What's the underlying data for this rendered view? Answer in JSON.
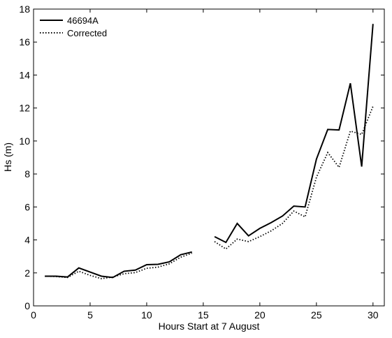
{
  "chart_data": {
    "type": "line",
    "xlabel": "Hours Start at 7 August",
    "ylabel": "Hs (m)",
    "xlim": [
      0,
      31
    ],
    "ylim": [
      0,
      18
    ],
    "x_ticks": [
      0,
      5,
      10,
      15,
      20,
      25,
      30
    ],
    "y_ticks": [
      0,
      2,
      4,
      6,
      8,
      10,
      12,
      14,
      16,
      18
    ],
    "grid": false,
    "legend_position": "top-left",
    "series": [
      {
        "name": "46694A",
        "style": "solid",
        "color": "#000000",
        "segments": [
          [
            [
              1,
              1.8
            ],
            [
              2,
              1.8
            ],
            [
              3,
              1.75
            ],
            [
              4,
              2.3
            ],
            [
              5,
              2.05
            ],
            [
              6,
              1.8
            ],
            [
              7,
              1.72
            ],
            [
              8,
              2.1
            ],
            [
              9,
              2.17
            ],
            [
              10,
              2.5
            ],
            [
              11,
              2.52
            ],
            [
              12,
              2.67
            ],
            [
              13,
              3.1
            ],
            [
              14,
              3.27
            ]
          ],
          [
            [
              16,
              4.2
            ],
            [
              17,
              3.85
            ],
            [
              18,
              5.0
            ],
            [
              19,
              4.25
            ],
            [
              20,
              4.7
            ],
            [
              21,
              5.05
            ],
            [
              22,
              5.45
            ],
            [
              23,
              6.05
            ],
            [
              24,
              6.0
            ],
            [
              25,
              8.9
            ],
            [
              26,
              10.7
            ],
            [
              27,
              10.67
            ],
            [
              28,
              13.5
            ],
            [
              29,
              8.45
            ],
            [
              30,
              17.1
            ]
          ]
        ]
      },
      {
        "name": "Corrected",
        "style": "dotted",
        "color": "#000000",
        "segments": [
          [
            [
              1,
              1.8
            ],
            [
              2,
              1.78
            ],
            [
              3,
              1.72
            ],
            [
              4,
              2.1
            ],
            [
              5,
              1.85
            ],
            [
              6,
              1.65
            ],
            [
              7,
              1.75
            ],
            [
              8,
              1.95
            ],
            [
              9,
              2.02
            ],
            [
              10,
              2.28
            ],
            [
              11,
              2.35
            ],
            [
              12,
              2.55
            ],
            [
              13,
              2.95
            ],
            [
              14,
              3.2
            ]
          ],
          [
            [
              16,
              3.9
            ],
            [
              17,
              3.45
            ],
            [
              18,
              4.05
            ],
            [
              19,
              3.9
            ],
            [
              20,
              4.2
            ],
            [
              21,
              4.55
            ],
            [
              22,
              5.0
            ],
            [
              23,
              5.75
            ],
            [
              24,
              5.4
            ],
            [
              25,
              7.8
            ],
            [
              26,
              9.3
            ],
            [
              27,
              8.4
            ],
            [
              28,
              10.6
            ],
            [
              29,
              10.4
            ],
            [
              30,
              12.1
            ]
          ]
        ]
      }
    ]
  }
}
